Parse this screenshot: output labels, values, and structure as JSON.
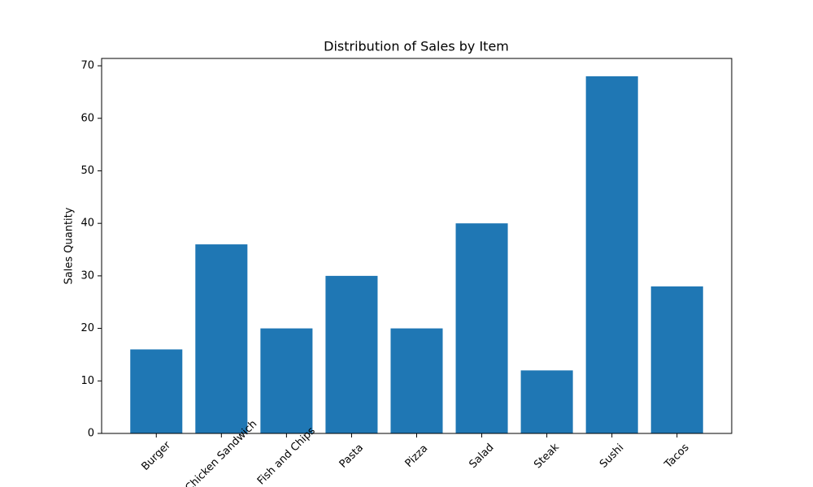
{
  "chart_data": {
    "type": "bar",
    "title": "Distribution of Sales by Item",
    "y_label": "Sales Quantity",
    "categories": [
      "Burger",
      "Chicken Sandwich",
      "Fish and Chips",
      "Pasta",
      "Pizza",
      "Salad",
      "Steak",
      "Sushi",
      "Tacos"
    ],
    "values": [
      16,
      36,
      20,
      30,
      20,
      40,
      12,
      68,
      28
    ],
    "color": "#1f77b4",
    "ylim": [
      0,
      71.4
    ],
    "yticks": [
      0,
      10,
      20,
      30,
      40,
      50,
      60,
      70
    ],
    "grid": false
  }
}
